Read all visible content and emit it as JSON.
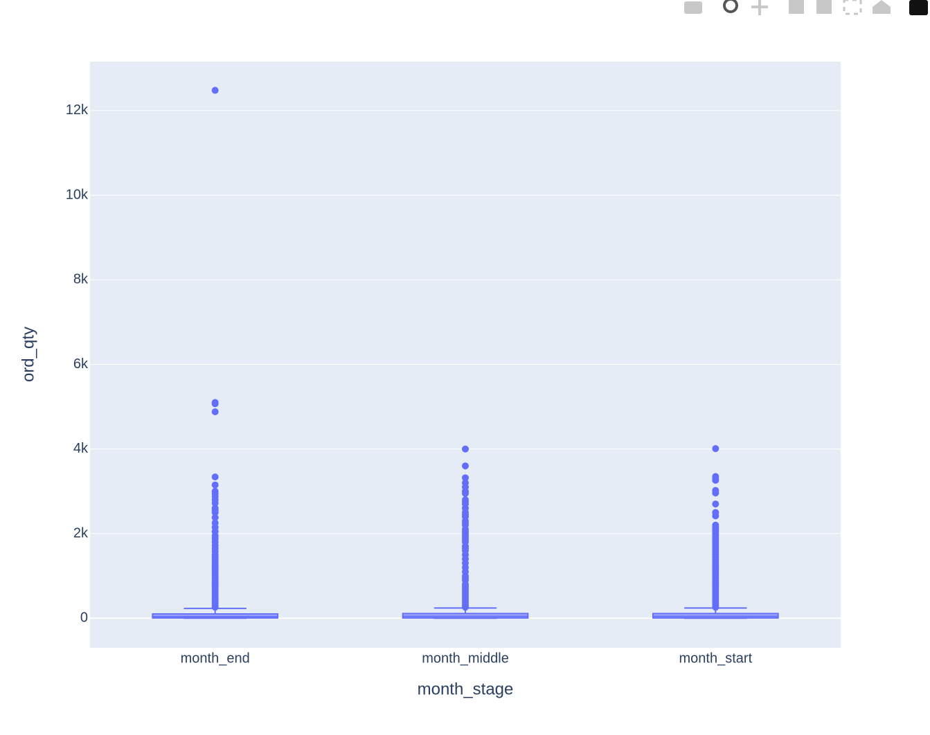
{
  "chart_data": {
    "type": "box",
    "x_title": "month_stage",
    "y_title": "ord_qty",
    "categories": [
      "month_end",
      "month_middle",
      "month_start"
    ],
    "color": "#636efa",
    "lowerfence": [
      0,
      0,
      0
    ],
    "q1": [
      5,
      5,
      5
    ],
    "median": [
      40,
      45,
      45
    ],
    "q3": [
      100,
      110,
      110
    ],
    "upperfence": [
      230,
      240,
      240
    ],
    "outliers": [
      [
        12480,
        5100,
        5070,
        4880,
        3340,
        3150,
        3000,
        2950,
        2880,
        2800,
        2720,
        2600,
        2550,
        2500,
        2380,
        2250,
        2150,
        2050,
        1950,
        1880,
        1800,
        1720,
        1650,
        1580,
        1500,
        1450,
        1400,
        1350,
        1300,
        1250,
        1200,
        1150,
        1100,
        1050,
        1000,
        950,
        900,
        850,
        800,
        750,
        700,
        650,
        600,
        550,
        500,
        450,
        400,
        350,
        300,
        260
      ],
      [
        4000,
        3600,
        3320,
        3200,
        3100,
        3000,
        2950,
        2800,
        2750,
        2700,
        2600,
        2500,
        2450,
        2400,
        2300,
        2250,
        2200,
        2100,
        2050,
        2000,
        1950,
        1900,
        1850,
        1800,
        1700,
        1650,
        1600,
        1500,
        1400,
        1300,
        1200,
        1100,
        1000,
        950,
        900,
        800,
        750,
        700,
        650,
        600,
        550,
        500,
        450,
        400,
        350,
        300,
        260
      ],
      [
        4010,
        3350,
        3300,
        3260,
        3020,
        2960,
        2700,
        2500,
        2420,
        2200,
        2150,
        2100,
        2050,
        2000,
        1950,
        1900,
        1850,
        1800,
        1750,
        1700,
        1650,
        1600,
        1550,
        1500,
        1450,
        1400,
        1350,
        1300,
        1250,
        1200,
        1150,
        1100,
        1050,
        1000,
        950,
        900,
        850,
        800,
        750,
        700,
        650,
        600,
        550,
        500,
        450,
        400,
        350,
        300,
        260
      ]
    ],
    "ylim": [
      -700,
      13160
    ],
    "yticks": [
      0,
      {
        "value": 2000,
        "label": "2k"
      },
      {
        "value": 4000,
        "label": "4k"
      },
      {
        "value": 6000,
        "label": "6k"
      },
      {
        "value": 8000,
        "label": "8k"
      },
      {
        "value": 10000,
        "label": "10k"
      },
      {
        "value": 12000,
        "label": "12k"
      }
    ],
    "grid": true
  }
}
